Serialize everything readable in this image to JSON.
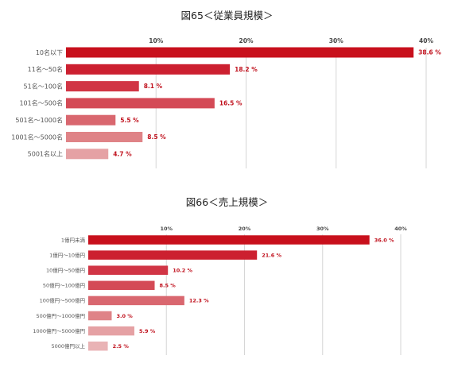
{
  "chart_data": [
    {
      "type": "bar",
      "orientation": "horizontal",
      "title": "図65＜従業員規模＞",
      "categories": [
        "10名以下",
        "11名～50名",
        "51名～100名",
        "101名～500名",
        "501名～1000名",
        "1001名～5000名",
        "5001名以上"
      ],
      "values": [
        38.6,
        18.2,
        8.1,
        16.5,
        5.5,
        8.5,
        4.7
      ],
      "value_labels": [
        "38.6 %",
        "18.2 %",
        "8.1 %",
        "16.5 %",
        "5.5 %",
        "8.5 %",
        "4.7 %"
      ],
      "ticks": [
        "10%",
        "20%",
        "30%",
        "40%"
      ],
      "tick_values": [
        10,
        20,
        30,
        40
      ],
      "xlim": [
        0,
        40
      ],
      "grid": true,
      "colors": [
        "#c8101c",
        "#cc2030",
        "#d13545",
        "#d44a56",
        "#d9676f",
        "#df8387",
        "#e5a1a4"
      ]
    },
    {
      "type": "bar",
      "orientation": "horizontal",
      "title": "図66＜売上規模＞",
      "categories": [
        "1億円未満",
        "1億円～10億円",
        "10億円～50億円",
        "50億円～100億円",
        "100億円～500億円",
        "500億円～1000億円",
        "1000億円～5000億円",
        "5000億円以上"
      ],
      "values": [
        36.0,
        21.6,
        10.2,
        8.5,
        12.3,
        3.0,
        5.9,
        2.5
      ],
      "value_labels": [
        "36.0 %",
        "21.6 %",
        "10.2 %",
        "8.5 %",
        "12.3 %",
        "3.0 %",
        "5.9 %",
        "2.5 %"
      ],
      "ticks": [
        "10%",
        "20%",
        "30%",
        "40%"
      ],
      "tick_values": [
        10,
        20,
        30,
        40
      ],
      "xlim": [
        0,
        40
      ],
      "grid": true,
      "colors": [
        "#c8101c",
        "#cc2030",
        "#d13545",
        "#d44a56",
        "#d9676f",
        "#df8387",
        "#e5a1a4",
        "#e9b3b5"
      ]
    }
  ]
}
